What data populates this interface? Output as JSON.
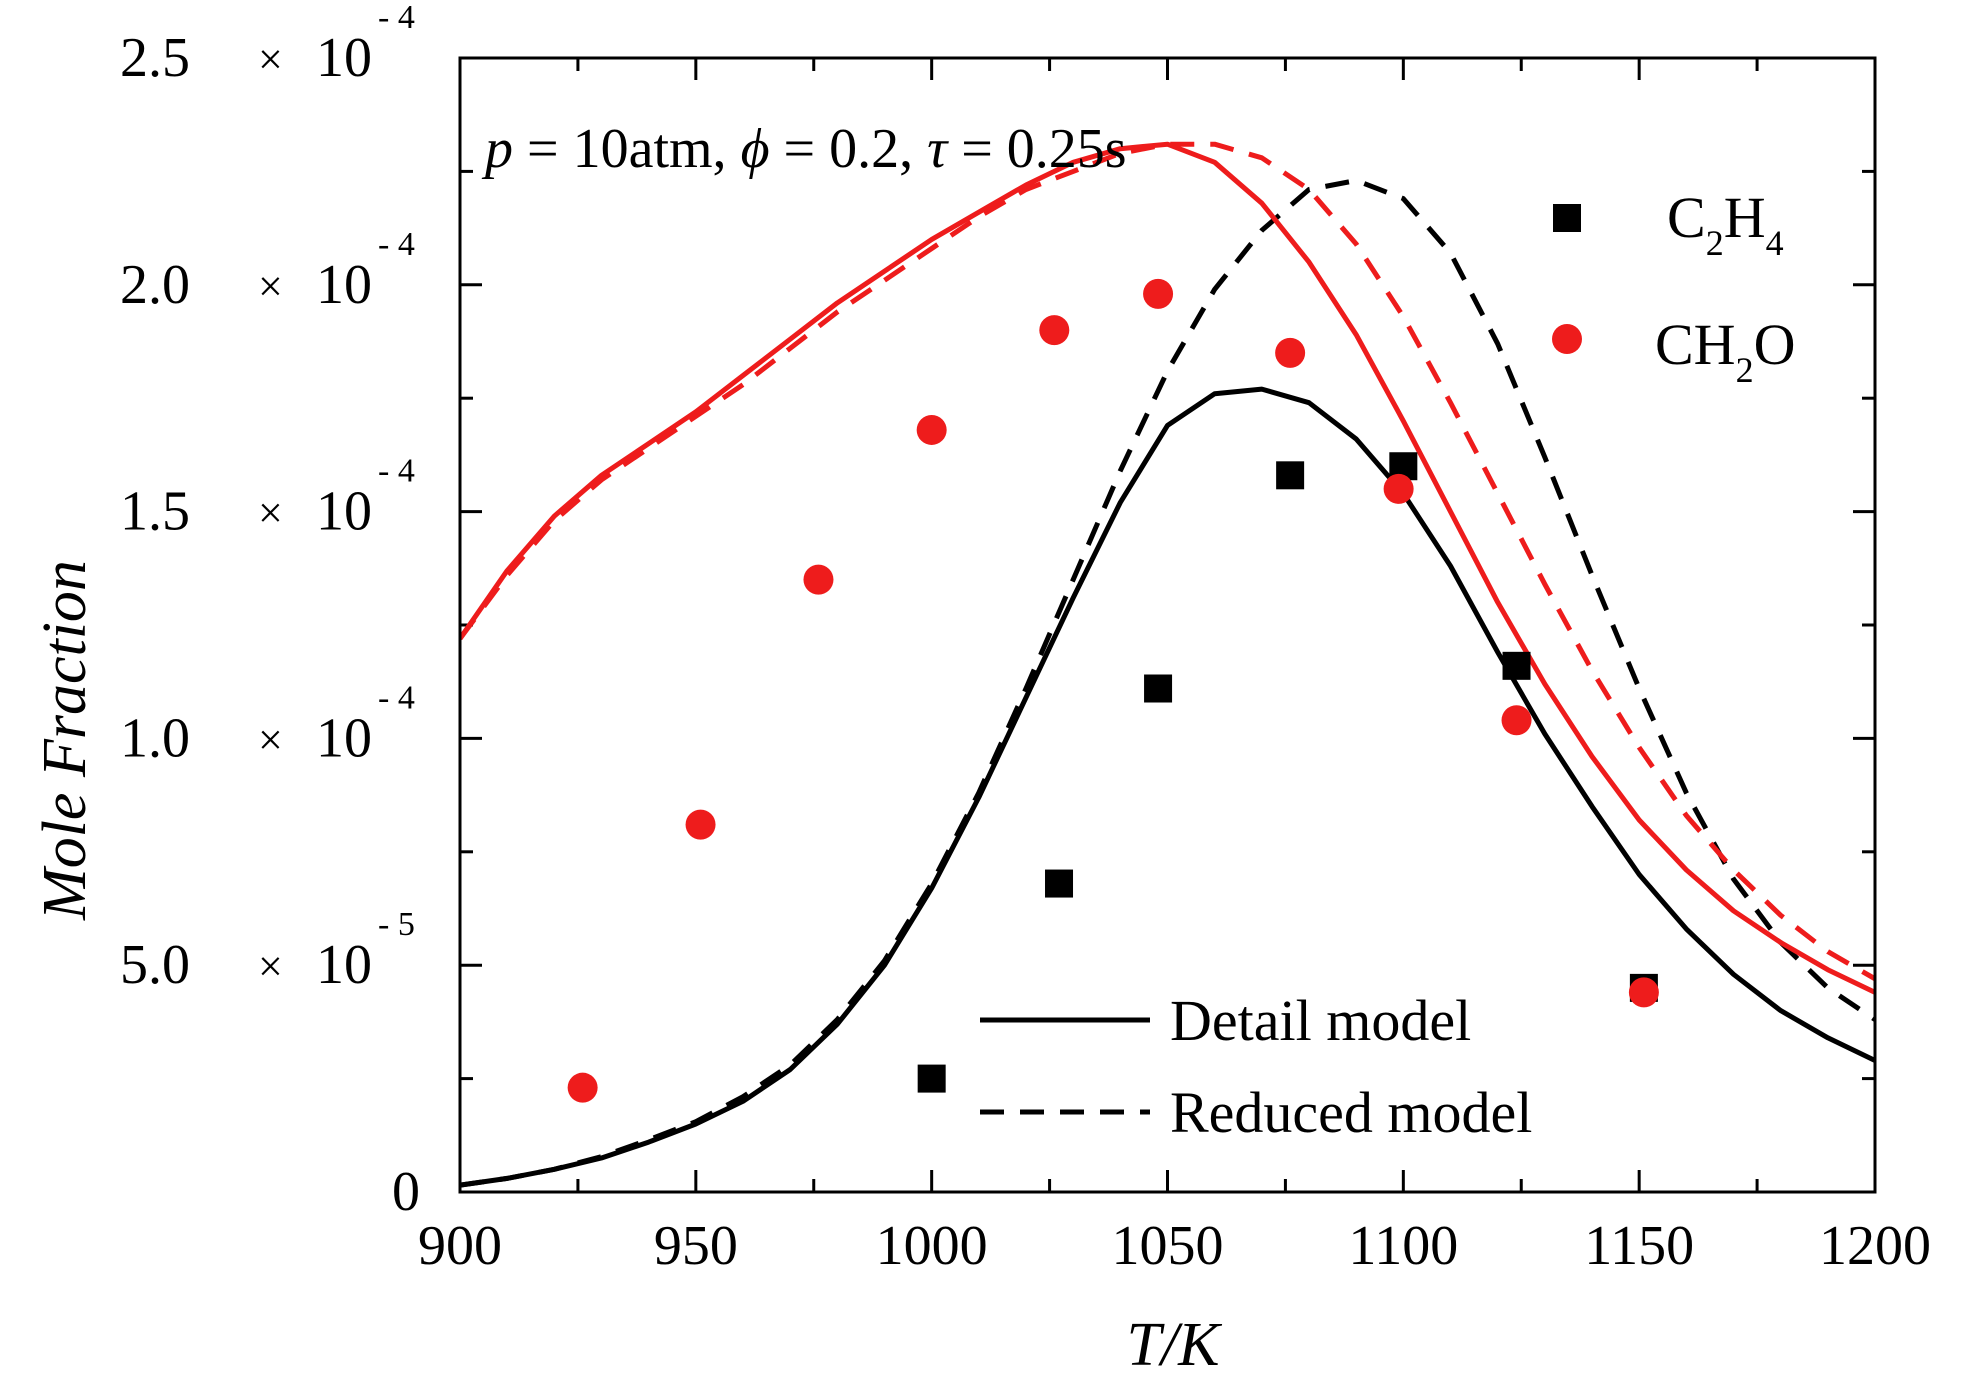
{
  "chart_data": {
    "type": "line",
    "annotation": {
      "p": "p",
      "p_val": " = 10atm, ",
      "phi": "ϕ",
      "phi_val": " = 0.2, ",
      "tau": "τ",
      "tau_val": " = 0.25s"
    },
    "xlabel": "T/K",
    "ylabel": "Mole Fraction",
    "xlim": [
      900,
      1200
    ],
    "ylim": [
      0,
      0.00025
    ],
    "xticks": [
      900,
      950,
      1000,
      1050,
      1100,
      1150,
      1200
    ],
    "xtick_labels": [
      "900",
      "950",
      "1000",
      "1050",
      "1100",
      "1150",
      "1200"
    ],
    "yticks": [
      0,
      5e-05,
      0.0001,
      0.00015,
      0.0002,
      0.00025
    ],
    "ytick_labels": [
      {
        "mantissa": "0",
        "times": "",
        "base": "",
        "exp": ""
      },
      {
        "mantissa": "5.0",
        "times": "×",
        "base": "10",
        "exp": "- 5"
      },
      {
        "mantissa": "1.0",
        "times": "×",
        "base": "10",
        "exp": "- 4"
      },
      {
        "mantissa": "1.5",
        "times": "×",
        "base": "10",
        "exp": "- 4"
      },
      {
        "mantissa": "2.0",
        "times": "×",
        "base": "10",
        "exp": "- 4"
      },
      {
        "mantissa": "2.5",
        "times": "×",
        "base": "10",
        "exp": "- 4"
      }
    ],
    "series": [
      {
        "name": "C2H4 detail model",
        "kind": "line",
        "style": "solid",
        "color": "#000000",
        "x": [
          900,
          910,
          920,
          930,
          940,
          950,
          960,
          970,
          980,
          990,
          1000,
          1010,
          1020,
          1030,
          1040,
          1050,
          1060,
          1070,
          1080,
          1090,
          1100,
          1110,
          1120,
          1130,
          1140,
          1150,
          1160,
          1170,
          1180,
          1190,
          1200
        ],
        "y": [
          1.5e-06,
          3e-06,
          5e-06,
          7.5e-06,
          1.1e-05,
          1.5e-05,
          2e-05,
          2.7e-05,
          3.7e-05,
          5e-05,
          6.7e-05,
          8.7e-05,
          0.000109,
          0.000131,
          0.000152,
          0.000169,
          0.000176,
          0.000177,
          0.000174,
          0.000166,
          0.000154,
          0.000138,
          0.000119,
          0.000101,
          8.5e-05,
          7e-05,
          5.8e-05,
          4.8e-05,
          4e-05,
          3.4e-05,
          2.9e-05
        ]
      },
      {
        "name": "C2H4 reduced model",
        "kind": "line",
        "style": "dashed",
        "color": "#000000",
        "x": [
          900,
          910,
          920,
          930,
          940,
          950,
          960,
          970,
          980,
          990,
          1000,
          1010,
          1020,
          1030,
          1040,
          1050,
          1060,
          1070,
          1080,
          1090,
          1100,
          1110,
          1120,
          1130,
          1140,
          1150,
          1160,
          1170,
          1180,
          1190,
          1200
        ],
        "y": [
          1.5e-06,
          3e-06,
          5e-06,
          7.8e-06,
          1.15e-05,
          1.55e-05,
          2.1e-05,
          2.8e-05,
          3.8e-05,
          5.1e-05,
          6.8e-05,
          8.8e-05,
          0.000111,
          0.000135,
          0.000159,
          0.000181,
          0.000199,
          0.000212,
          0.000221,
          0.000223,
          0.000219,
          0.000207,
          0.000187,
          0.000162,
          0.000136,
          0.000111,
          8.8e-05,
          6.9e-05,
          5.5e-05,
          4.5e-05,
          3.8e-05
        ]
      },
      {
        "name": "CH2O detail model",
        "kind": "line",
        "style": "solid",
        "color": "#ee1c1c",
        "x": [
          900,
          910,
          920,
          930,
          940,
          950,
          960,
          970,
          980,
          990,
          1000,
          1010,
          1020,
          1030,
          1040,
          1050,
          1060,
          1070,
          1080,
          1090,
          1100,
          1110,
          1120,
          1130,
          1140,
          1150,
          1160,
          1170,
          1180,
          1190,
          1200
        ],
        "y": [
          0.000122,
          0.000137,
          0.000149,
          0.000158,
          0.000165,
          0.000172,
          0.00018,
          0.000188,
          0.000196,
          0.000203,
          0.00021,
          0.000216,
          0.000222,
          0.000227,
          0.00023,
          0.000231,
          0.000227,
          0.000218,
          0.000205,
          0.000189,
          0.00017,
          0.00015,
          0.00013,
          0.000112,
          9.6e-05,
          8.2e-05,
          7.1e-05,
          6.2e-05,
          5.5e-05,
          4.9e-05,
          4.4e-05
        ]
      },
      {
        "name": "CH2O reduced model",
        "kind": "line",
        "style": "dashed",
        "color": "#ee1c1c",
        "x": [
          900,
          910,
          920,
          930,
          940,
          950,
          960,
          970,
          980,
          990,
          1000,
          1010,
          1020,
          1030,
          1040,
          1050,
          1060,
          1070,
          1080,
          1090,
          1100,
          1110,
          1120,
          1130,
          1140,
          1150,
          1160,
          1170,
          1180,
          1190,
          1200
        ],
        "y": [
          0.000122,
          0.000136,
          0.000148,
          0.000157,
          0.000164,
          0.000171,
          0.000178,
          0.000186,
          0.000194,
          0.000201,
          0.000208,
          0.000215,
          0.000221,
          0.000225,
          0.000229,
          0.000231,
          0.000231,
          0.000228,
          0.000221,
          0.000209,
          0.000193,
          0.000174,
          0.000154,
          0.000134,
          0.000115,
          9.8e-05,
          8.3e-05,
          7.1e-05,
          6.1e-05,
          5.3e-05,
          4.7e-05
        ]
      },
      {
        "name": "C2H4",
        "kind": "scatter",
        "marker": "square",
        "color": "#000000",
        "x": [
          1000,
          1027,
          1048,
          1076,
          1100,
          1124,
          1151
        ],
        "y": [
          2.5e-05,
          6.8e-05,
          0.000111,
          0.000158,
          0.00016,
          0.000116,
          4.5e-05
        ]
      },
      {
        "name": "CH2O",
        "kind": "scatter",
        "marker": "circle",
        "color": "#ee1c1c",
        "x": [
          926,
          951,
          976,
          1000,
          1026,
          1048,
          1076,
          1099,
          1124,
          1151
        ],
        "y": [
          2.3e-05,
          8.1e-05,
          0.000135,
          0.000168,
          0.00019,
          0.000198,
          0.000185,
          0.000155,
          0.000104,
          4.4e-05
        ]
      }
    ],
    "legend_markers": [
      {
        "main": "C",
        "sub1": "2",
        "mid": "H",
        "sub2": "4",
        "marker": "square",
        "color": "#000000"
      },
      {
        "main": "CH",
        "sub1": "2",
        "mid": "O",
        "sub2": "",
        "marker": "circle",
        "color": "#ee1c1c"
      }
    ],
    "legend_lines": [
      {
        "label": "Detail model",
        "style": "solid"
      },
      {
        "label": "Reduced model",
        "style": "dashed"
      }
    ]
  }
}
